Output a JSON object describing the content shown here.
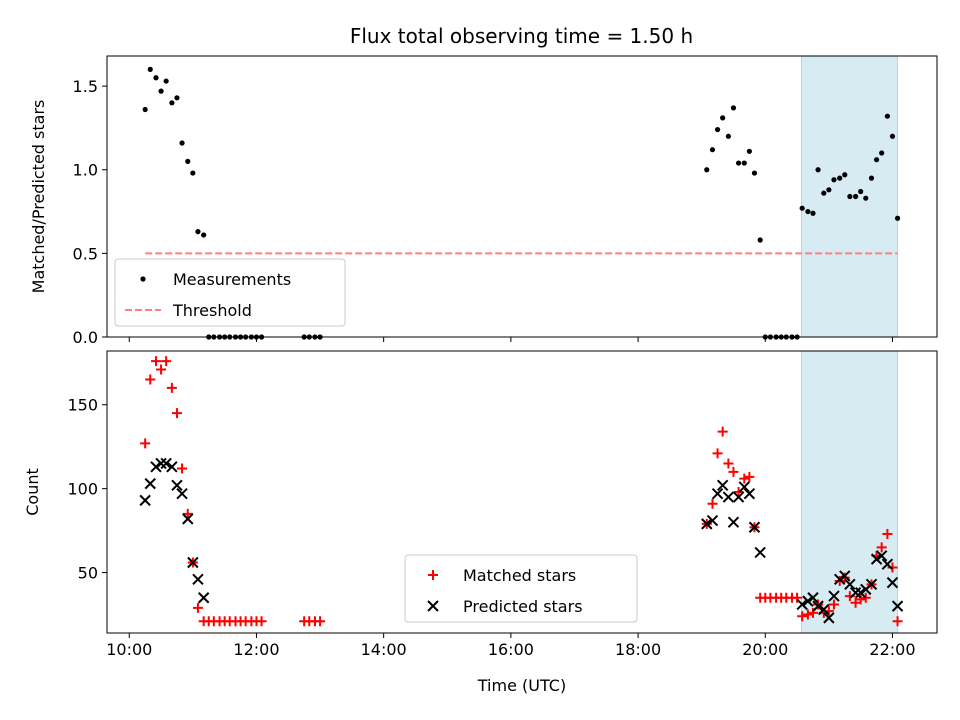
{
  "chart_data": [
    {
      "type": "scatter",
      "title": "Flux total observing time = 1.50 h",
      "ylabel": "Matched/Predicted stars",
      "xlabel": "",
      "xlim": [
        9.65,
        22.7
      ],
      "ylim": [
        0,
        1.68
      ],
      "xticks": [
        "10:00",
        "12:00",
        "14:00",
        "16:00",
        "18:00",
        "20:00",
        "22:00"
      ],
      "xtick_values": [
        10,
        12,
        14,
        16,
        18,
        20,
        22
      ],
      "xtick_labels_visible": false,
      "yticks": [
        0.0,
        0.5,
        1.0,
        1.5
      ],
      "ytick_labels": [
        "0.0",
        "0.5",
        "1.0",
        "1.5"
      ],
      "highlight_span": {
        "x0": 20.57,
        "x1": 22.08,
        "color": "#add8e6"
      },
      "legend_position": "lower-left",
      "series": [
        {
          "name": "Measurements",
          "marker": "dot",
          "color": "#000000",
          "x": [
            10.25,
            10.33,
            10.42,
            10.5,
            10.58,
            10.67,
            10.75,
            10.83,
            10.92,
            11.0,
            11.08,
            11.17,
            11.25,
            11.33,
            11.42,
            11.5,
            11.58,
            11.67,
            11.75,
            11.83,
            11.92,
            12.0,
            12.08,
            12.75,
            12.83,
            12.92,
            13.0,
            19.08,
            19.17,
            19.25,
            19.33,
            19.42,
            19.5,
            19.58,
            19.67,
            19.75,
            19.83,
            19.92,
            20.0,
            20.08,
            20.17,
            20.25,
            20.33,
            20.42,
            20.5,
            20.58,
            20.67,
            20.75,
            20.83,
            20.92,
            21.0,
            21.08,
            21.17,
            21.25,
            21.33,
            21.42,
            21.5,
            21.58,
            21.67,
            21.75,
            21.83,
            21.92,
            22.0,
            22.08
          ],
          "y": [
            1.36,
            1.6,
            1.55,
            1.47,
            1.53,
            1.4,
            1.43,
            1.16,
            1.05,
            0.98,
            0.63,
            0.61,
            0.0,
            0.0,
            0.0,
            0.0,
            0.0,
            0.0,
            0.0,
            0.0,
            0.0,
            0.0,
            0.0,
            0.0,
            0.0,
            0.0,
            0.0,
            1.0,
            1.12,
            1.24,
            1.31,
            1.2,
            1.37,
            1.04,
            1.04,
            1.11,
            0.98,
            0.58,
            0.0,
            0.0,
            0.0,
            0.0,
            0.0,
            0.0,
            0.0,
            0.77,
            0.75,
            0.74,
            1.0,
            0.86,
            0.88,
            0.94,
            0.95,
            0.97,
            0.84,
            0.84,
            0.87,
            0.83,
            0.95,
            1.06,
            1.1,
            1.32,
            1.2,
            0.71
          ]
        },
        {
          "name": "Threshold",
          "type": "line",
          "dash": "dashed",
          "color": "#ff7f7f",
          "x": [
            10.25,
            22.08
          ],
          "y": [
            0.5,
            0.5
          ]
        }
      ]
    },
    {
      "type": "scatter",
      "title": "",
      "ylabel": "Count",
      "xlabel": "Time (UTC)",
      "xlim": [
        9.65,
        22.7
      ],
      "ylim": [
        14,
        182
      ],
      "xticks": [
        "10:00",
        "12:00",
        "14:00",
        "16:00",
        "18:00",
        "20:00",
        "22:00"
      ],
      "xtick_values": [
        10,
        12,
        14,
        16,
        18,
        20,
        22
      ],
      "xtick_labels_visible": true,
      "yticks": [
        50,
        100,
        150
      ],
      "ytick_labels": [
        "50",
        "100",
        "150"
      ],
      "highlight_span": {
        "x0": 20.57,
        "x1": 22.08,
        "color": "#add8e6"
      },
      "legend_position": "lower-center",
      "series": [
        {
          "name": "Matched stars",
          "marker": "plus",
          "color": "#ff0000",
          "x": [
            10.25,
            10.33,
            10.42,
            10.5,
            10.58,
            10.67,
            10.75,
            10.83,
            10.92,
            11.0,
            11.08,
            11.17,
            11.25,
            11.33,
            11.42,
            11.5,
            11.58,
            11.67,
            11.75,
            11.83,
            11.92,
            12.0,
            12.08,
            12.75,
            12.83,
            12.92,
            13.0,
            19.08,
            19.17,
            19.25,
            19.33,
            19.42,
            19.5,
            19.58,
            19.67,
            19.75,
            19.83,
            19.92,
            20.0,
            20.08,
            20.17,
            20.25,
            20.33,
            20.42,
            20.5,
            20.58,
            20.67,
            20.75,
            20.83,
            20.92,
            21.0,
            21.08,
            21.17,
            21.25,
            21.33,
            21.42,
            21.5,
            21.58,
            21.67,
            21.75,
            21.83,
            21.92,
            22.0,
            22.08
          ],
          "y": [
            127,
            165,
            176,
            171,
            176,
            160,
            145,
            112,
            85,
            56,
            29,
            21,
            21,
            21,
            21,
            21,
            21,
            21,
            21,
            21,
            21,
            21,
            21,
            21,
            21,
            21,
            21,
            79,
            91,
            121,
            134,
            115,
            110,
            98,
            106,
            107,
            77,
            35,
            35,
            35,
            35,
            35,
            35,
            35,
            35,
            24,
            25,
            26,
            31,
            26,
            27,
            31,
            45,
            47,
            36,
            32,
            34,
            35,
            43,
            60,
            65,
            73,
            53,
            21
          ]
        },
        {
          "name": "Predicted stars",
          "marker": "x",
          "color": "#000000",
          "x": [
            10.25,
            10.33,
            10.42,
            10.5,
            10.58,
            10.67,
            10.75,
            10.83,
            10.92,
            11.0,
            11.08,
            11.17,
            19.08,
            19.17,
            19.25,
            19.33,
            19.42,
            19.5,
            19.58,
            19.67,
            19.75,
            19.83,
            19.92,
            20.58,
            20.67,
            20.75,
            20.83,
            20.92,
            21.0,
            21.08,
            21.17,
            21.25,
            21.33,
            21.42,
            21.5,
            21.58,
            21.67,
            21.75,
            21.83,
            21.92,
            22.0,
            22.08
          ],
          "y": [
            93,
            103,
            113,
            115,
            115,
            113,
            102,
            97,
            82,
            56,
            46,
            35,
            79,
            81,
            97,
            102,
            95,
            80,
            95,
            101,
            97,
            77,
            62,
            31,
            33,
            35,
            30,
            28,
            23,
            36,
            46,
            48,
            43,
            38,
            38,
            40,
            43,
            58,
            60,
            55,
            44,
            30
          ]
        }
      ]
    }
  ]
}
